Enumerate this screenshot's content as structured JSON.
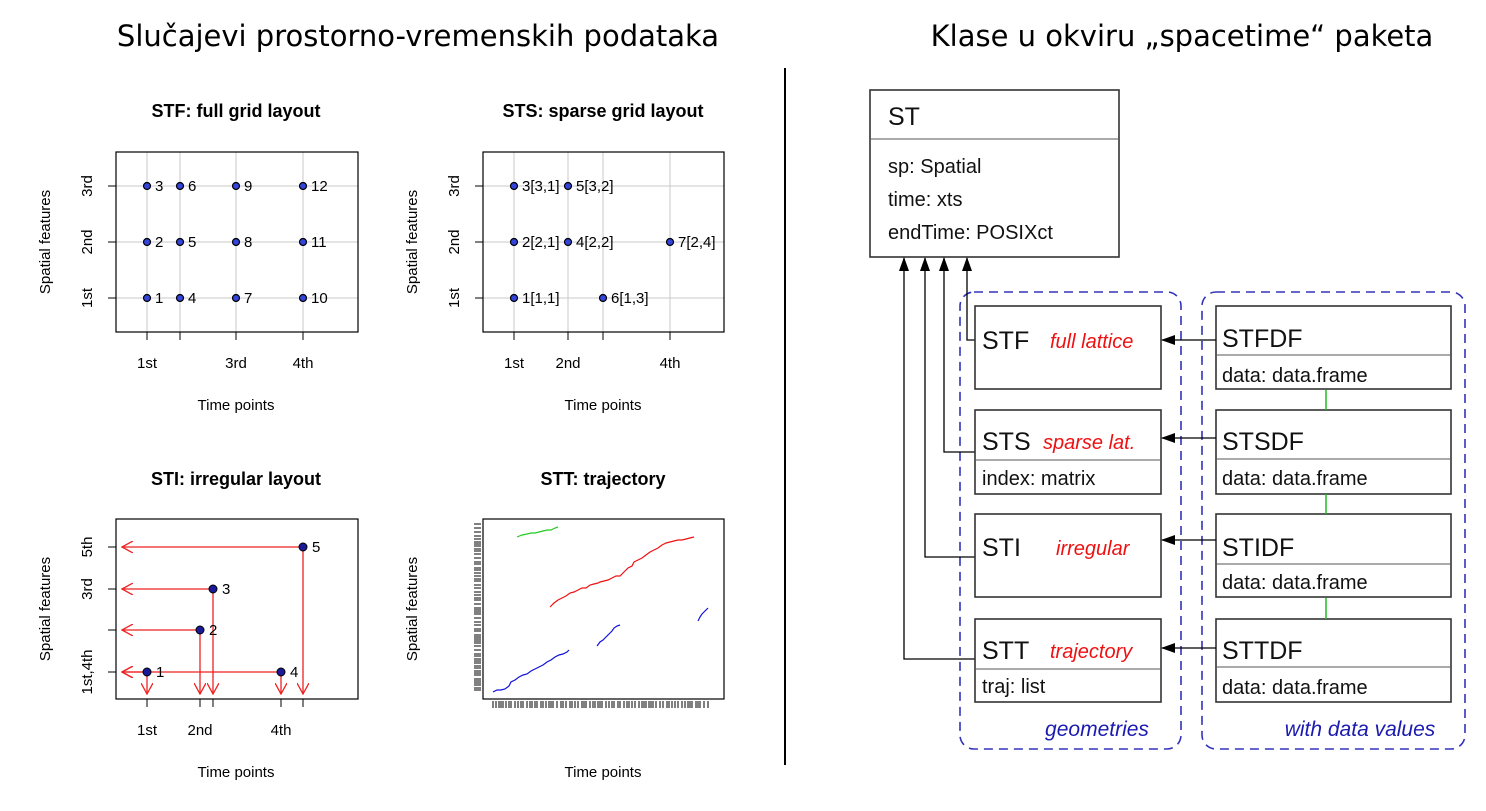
{
  "left_title": "Slučajevi prostorno-vremenskih podataka",
  "right_title": "Klase u okviru „spacetime“ paketa",
  "panels": {
    "stf": {
      "title": "STF: full grid layout",
      "xlabel": "Time points",
      "ylabel": "Spatial features",
      "xticks": [
        "1st",
        "3rd",
        "4th"
      ],
      "yticks": [
        "1st",
        "2nd",
        "3rd"
      ],
      "labels": [
        "1",
        "2",
        "3",
        "4",
        "5",
        "6",
        "7",
        "8",
        "9",
        "10",
        "11",
        "12"
      ]
    },
    "sts": {
      "title": "STS: sparse grid layout",
      "xlabel": "Time points",
      "ylabel": "Spatial features",
      "xticks": [
        "1st",
        "2nd",
        "4th"
      ],
      "yticks": [
        "1st",
        "2nd",
        "3rd"
      ],
      "labels": [
        "1[1,1]",
        "2[2,1]",
        "3[3,1]",
        "4[2,2]",
        "5[3,2]",
        "6[1,3]",
        "7[2,4]"
      ]
    },
    "sti": {
      "title": "STI: irregular layout",
      "xlabel": "Time points",
      "ylabel": "Spatial features",
      "xticks": [
        "1st",
        "2nd",
        "4th"
      ],
      "yticks": [
        "1st,4th",
        "3rd",
        "5th"
      ],
      "labels": [
        "1",
        "2",
        "3",
        "4",
        "5"
      ]
    },
    "stt": {
      "title": "STT: trajectory",
      "xlabel": "Time points",
      "ylabel": "Spatial features"
    }
  },
  "diagram": {
    "st": {
      "name": "ST",
      "attrs": [
        "sp: Spatial",
        "time: xts",
        "endTime: POSIXct"
      ]
    },
    "geometries": [
      {
        "name": "STF",
        "desc": "full lattice",
        "attr": ""
      },
      {
        "name": "STS",
        "desc": "sparse lat.",
        "attr": "index: matrix"
      },
      {
        "name": "STI",
        "desc": "irregular",
        "attr": ""
      },
      {
        "name": "STT",
        "desc": "trajectory",
        "attr": "traj: list"
      }
    ],
    "data_classes": [
      {
        "name": "STFDF",
        "attr": "data: data.frame"
      },
      {
        "name": "STSDF",
        "attr": "data: data.frame"
      },
      {
        "name": "STIDF",
        "attr": "data: data.frame"
      },
      {
        "name": "STTDF",
        "attr": "data: data.frame"
      }
    ],
    "group_geometries": "geometries",
    "group_data": "with data values",
    "colors": {
      "red": "#ee1111",
      "blue": "#1a1ab0",
      "green": "#22bb22"
    }
  }
}
